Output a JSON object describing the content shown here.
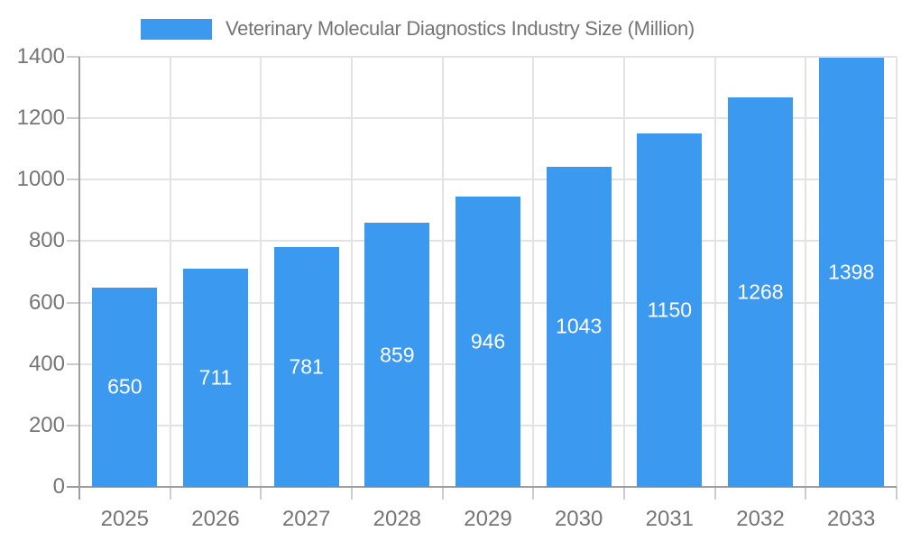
{
  "chart_data": {
    "type": "bar",
    "title": "Veterinary Molecular Diagnostics Industry Size (Million)",
    "categories": [
      "2025",
      "2026",
      "2027",
      "2028",
      "2029",
      "2030",
      "2031",
      "2032",
      "2033"
    ],
    "values": [
      650,
      711,
      781,
      859,
      946,
      1043,
      1150,
      1268,
      1398
    ],
    "xlabel": "",
    "ylabel": "",
    "ylim": [
      0,
      1400
    ],
    "ytick_step": 200,
    "grid": true,
    "legend_position": "top",
    "series_color": "#3C99F0",
    "bar_label_color": "#ffffff",
    "axis_label_color": "#757575",
    "axis_line_color": "#9e9e9e",
    "gridline_color": "#e3e3e3",
    "tick_color": "#cccccc",
    "background_color": "#ffffff"
  }
}
